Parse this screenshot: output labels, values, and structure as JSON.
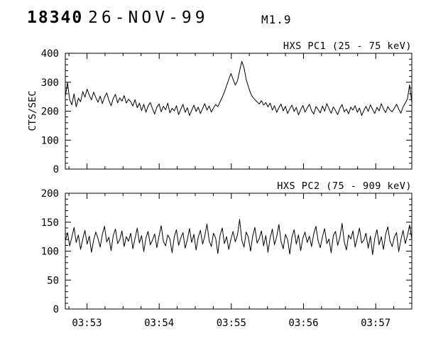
{
  "header": {
    "event_number": "18340",
    "date": "26-NOV-99",
    "flare_class": "M1.9"
  },
  "colors": {
    "line": "#000000",
    "axis": "#000000",
    "background": "#ffffff"
  },
  "chart_data": [
    {
      "type": "line",
      "title": "HXS PC1 (25 - 75 keV)",
      "ylabel": "CTS/SEC",
      "ylim": [
        0,
        400
      ],
      "yticks": [
        0,
        100,
        200,
        300,
        400
      ],
      "x_range_minutes": [
        52.7,
        57.5
      ],
      "xticks_minutes": [
        53,
        54,
        55,
        56,
        57
      ],
      "xtick_labels": [
        "03:53",
        "03:54",
        "03:55",
        "03:56",
        "03:57"
      ],
      "show_xtick_labels": false,
      "grid": false,
      "line_color": "#000000",
      "values": [
        252,
        298,
        240,
        222,
        260,
        215,
        245,
        233,
        268,
        248,
        276,
        255,
        239,
        266,
        247,
        231,
        252,
        226,
        248,
        263,
        237,
        219,
        244,
        258,
        229,
        246,
        235,
        254,
        228,
        241,
        233,
        218,
        240,
        212,
        228,
        202,
        224,
        196,
        218,
        230,
        208,
        190,
        214,
        225,
        198,
        217,
        205,
        228,
        194,
        210,
        201,
        219,
        188,
        207,
        224,
        196,
        212,
        185,
        203,
        221,
        199,
        214,
        192,
        209,
        226,
        204,
        218,
        197,
        211,
        223,
        216,
        232,
        248,
        266,
        288,
        310,
        330,
        310,
        290,
        305,
        340,
        372,
        350,
        310,
        285,
        262,
        248,
        240,
        232,
        225,
        236,
        221,
        230,
        215,
        228,
        204,
        219,
        196,
        212,
        225,
        201,
        217,
        192,
        208,
        221,
        199,
        213,
        187,
        205,
        220,
        197,
        211,
        224,
        202,
        190,
        216,
        206,
        194,
        218,
        200,
        226,
        209,
        193,
        215,
        202,
        188,
        210,
        223,
        198,
        207,
        191,
        214,
        204,
        219,
        196,
        211,
        185,
        203,
        217,
        199,
        222,
        206,
        192,
        213,
        201,
        226,
        208,
        195,
        216,
        204,
        198,
        210,
        224,
        207,
        193,
        215,
        228,
        243,
        291,
        230
      ]
    },
    {
      "type": "line",
      "title": "HXS PC2 (75 - 909 keV)",
      "ylabel": "",
      "ylim": [
        0,
        200
      ],
      "yticks": [
        0,
        50,
        100,
        150,
        200
      ],
      "x_range_minutes": [
        52.7,
        57.5
      ],
      "xticks_minutes": [
        53,
        54,
        55,
        56,
        57
      ],
      "xtick_labels": [
        "03:53",
        "03:54",
        "03:55",
        "03:56",
        "03:57"
      ],
      "show_xtick_labels": true,
      "grid": false,
      "line_color": "#000000",
      "values": [
        118,
        132,
        109,
        124,
        141,
        115,
        128,
        103,
        121,
        136,
        112,
        126,
        98,
        119,
        133,
        122,
        107,
        129,
        143,
        116,
        124,
        101,
        127,
        138,
        113,
        120,
        135,
        108,
        125,
        117,
        131,
        104,
        122,
        140,
        114,
        127,
        99,
        123,
        134,
        111,
        119,
        130,
        106,
        126,
        144,
        117,
        109,
        128,
        121,
        97,
        125,
        137,
        110,
        123,
        132,
        105,
        120,
        139,
        115,
        129,
        102,
        124,
        136,
        112,
        126,
        147,
        118,
        108,
        131,
        122,
        96,
        127,
        140,
        113,
        125,
        103,
        121,
        134,
        116,
        128,
        155,
        119,
        107,
        133,
        124,
        100,
        126,
        141,
        114,
        122,
        135,
        109,
        127,
        98,
        123,
        138,
        111,
        125,
        146,
        117,
        104,
        129,
        120,
        95,
        124,
        137,
        112,
        128,
        101,
        122,
        133,
        115,
        126,
        108,
        130,
        143,
        118,
        106,
        125,
        139,
        113,
        121,
        97,
        127,
        134,
        110,
        124,
        148,
        116,
        102,
        128,
        121,
        135,
        107,
        123,
        140,
        114,
        119,
        131,
        105,
        126,
        94,
        122,
        137,
        111,
        125,
        103,
        129,
        142,
        117,
        108,
        124,
        132,
        99,
        120,
        136,
        113,
        127,
        145,
        121
      ]
    }
  ]
}
